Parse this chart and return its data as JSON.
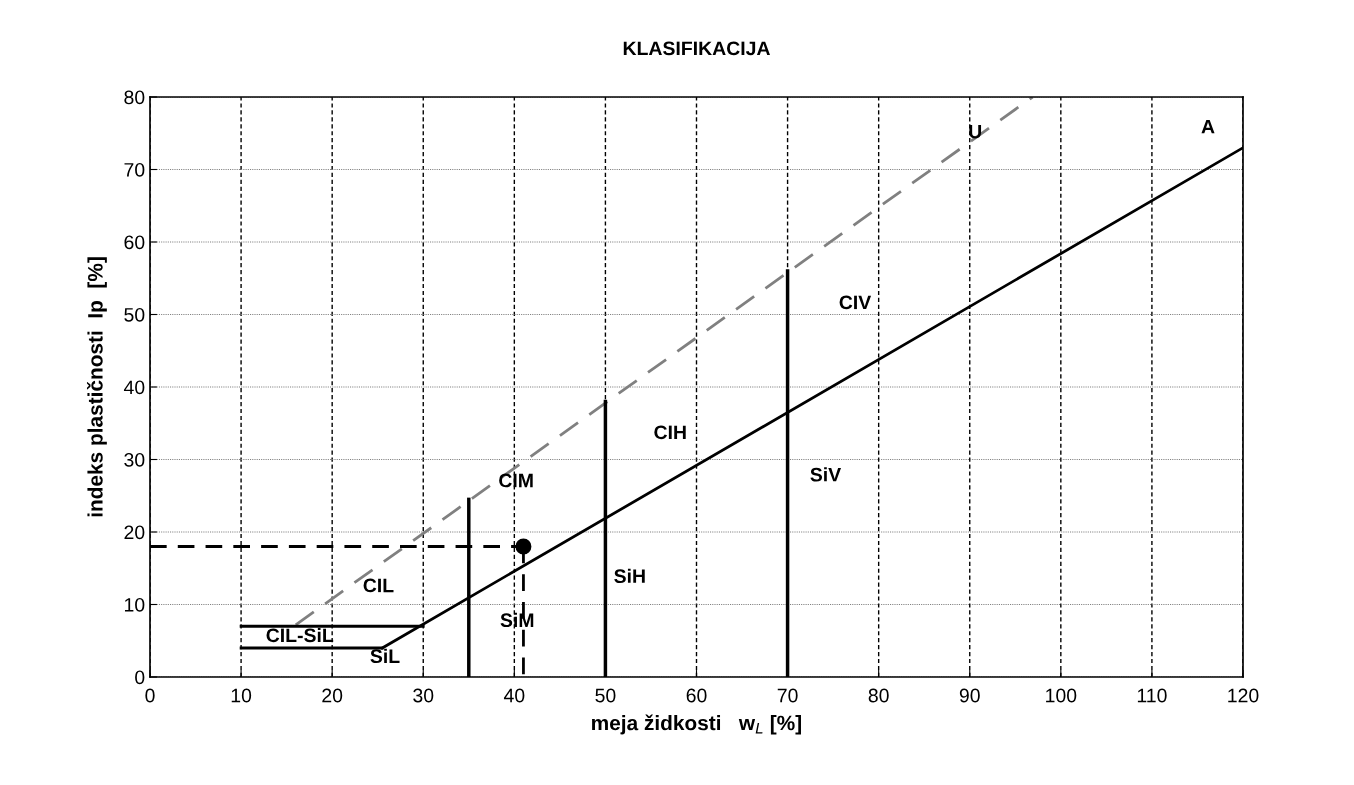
{
  "chart_data": {
    "type": "line",
    "title": "KLASIFIKACIJA",
    "xlabel": "meja židkosti   w$_{L}$ [%]",
    "ylabel": "indeks plastičnosti  Ip  [%]",
    "xlim": [
      0,
      120
    ],
    "xticks": [
      0,
      10,
      20,
      30,
      40,
      50,
      60,
      70,
      80,
      90,
      100,
      110,
      120
    ],
    "ylim": [
      0,
      80
    ],
    "yticks": [
      0,
      10,
      20,
      30,
      40,
      50,
      60,
      70,
      80
    ],
    "grid": true,
    "legend": false,
    "series": [
      {
        "color": "#000000",
        "line_style": "solid",
        "x": [
          25.5,
          120
        ],
        "values": [
          4,
          73
        ]
      },
      {
        "color": "#808080",
        "line_style": "dashed",
        "x": [
          16,
          96.9
        ],
        "values": [
          7.2,
          80
        ]
      },
      {
        "color": "#000000",
        "line_style": "solid",
        "x": [
          10,
          30
        ],
        "values": [
          7,
          7
        ]
      },
      {
        "color": "#000000",
        "line_style": "solid",
        "x": [
          10,
          25.5
        ],
        "values": [
          4,
          4
        ]
      },
      {
        "color": "#000000",
        "line_style": "solid",
        "x": [
          35,
          35
        ],
        "values": [
          0,
          24.5
        ]
      },
      {
        "color": "#000000",
        "line_style": "solid",
        "x": [
          50,
          50
        ],
        "values": [
          0,
          38
        ]
      },
      {
        "color": "#000000",
        "line_style": "solid",
        "x": [
          70,
          70
        ],
        "values": [
          0,
          56
        ]
      },
      {
        "color": "#000000",
        "line_style": "dashed",
        "x": [
          0,
          41
        ],
        "values": [
          18,
          18
        ]
      },
      {
        "color": "#000000",
        "line_style": "dashed",
        "x": [
          41,
          41
        ],
        "values": [
          18,
          0
        ]
      },
      {
        "type": "scatter",
        "color": "#000000",
        "marker": "circle",
        "x": [
          41
        ],
        "values": [
          18
        ]
      }
    ],
    "annotations": [
      "CIL-SiL",
      "SiL",
      "CIL",
      "CIM",
      "SiM",
      "CIH",
      "SiH",
      "CIV",
      "SiV",
      {
        "text": "U",
        "x": 90.6,
        "y": 75.0
      },
      "A"
    ]
  }
}
